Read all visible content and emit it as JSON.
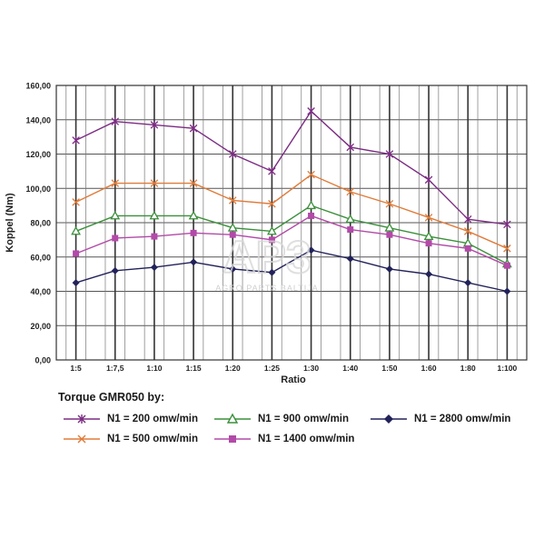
{
  "chart_data": {
    "type": "line",
    "xlabel": "Ratio",
    "ylabel": "Koppel (Nm)",
    "categories": [
      "1:5",
      "1:7,5",
      "1:10",
      "1:15",
      "1:20",
      "1:25",
      "1:30",
      "1:40",
      "1:50",
      "1:60",
      "1:80",
      "1:100"
    ],
    "y_ticks": [
      "0,00",
      "20,00",
      "40,00",
      "60,00",
      "80,00",
      "100,00",
      "120,00",
      "140,00",
      "160,00"
    ],
    "ylim": [
      0,
      160
    ],
    "grid": true,
    "legend_title": "Torque GMR050 by:",
    "series": [
      {
        "name": "N1 = 200 omw/min",
        "color": "#7b2c82",
        "marker": "star",
        "values": [
          128,
          139,
          137,
          135,
          120,
          110,
          145,
          124,
          120,
          105,
          82,
          79
        ]
      },
      {
        "name": "N1 = 500 omw/min",
        "color": "#e07b39",
        "marker": "x",
        "values": [
          92,
          103,
          103,
          103,
          93,
          91,
          108,
          98,
          91,
          83,
          75,
          65
        ]
      },
      {
        "name": "N1 = 900 omw/min",
        "color": "#3a8f3a",
        "marker": "triangle",
        "values": [
          75,
          84,
          84,
          84,
          77,
          75,
          90,
          82,
          77,
          72,
          68,
          56
        ]
      },
      {
        "name": "N1 = 1400 omw/min",
        "color": "#b24aa8",
        "marker": "square",
        "values": [
          62,
          71,
          72,
          74,
          73,
          70,
          84,
          76,
          73,
          68,
          65,
          55
        ]
      },
      {
        "name": "N1 = 2800 omw/min",
        "color": "#22225a",
        "marker": "diamond",
        "values": [
          45,
          52,
          54,
          57,
          53,
          51,
          64,
          59,
          53,
          50,
          45,
          40
        ]
      }
    ]
  },
  "watermark": {
    "logo_text": "AP3",
    "tagline": "AGRO PARTS BALTIJA"
  }
}
